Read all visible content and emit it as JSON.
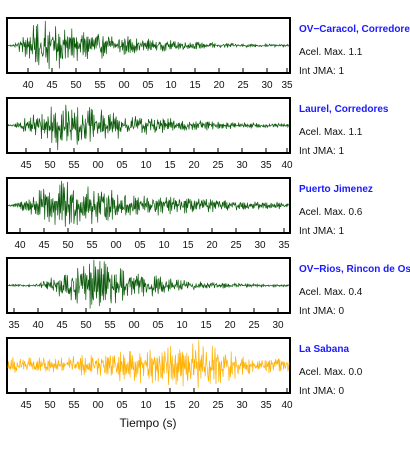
{
  "chart_data": [
    {
      "type": "line",
      "station": "OV−Caracol, Corredore",
      "acel_label": "Acel. Max. 1.1",
      "jma_label": "Int JMA: 1",
      "trace_color": "#0a5a0a",
      "envelope": {
        "start": 0.02,
        "peak_at": 0.12,
        "peak": 0.95,
        "decay": 0.28
      },
      "ticks": [
        "40",
        "45",
        "50",
        "55",
        "00",
        "05",
        "10",
        "15",
        "20",
        "25",
        "30",
        "35"
      ]
    },
    {
      "type": "line",
      "station": "Laurel, Corredores",
      "acel_label": "Acel. Max. 1.1",
      "jma_label": "Int JMA: 1",
      "trace_color": "#0a5a0a",
      "envelope": {
        "start": 0.02,
        "peak_at": 0.18,
        "peak": 0.9,
        "decay": 0.32
      },
      "ticks": [
        "45",
        "50",
        "55",
        "00",
        "05",
        "10",
        "15",
        "20",
        "25",
        "30",
        "35",
        "40"
      ]
    },
    {
      "type": "line",
      "station": "Puerto Jimenez",
      "acel_label": "Acel. Max. 0.6",
      "jma_label": "Int JMA: 1",
      "trace_color": "#0a5a0a",
      "envelope": {
        "start": 0.02,
        "peak_at": 0.18,
        "peak": 0.85,
        "decay": 0.4
      },
      "ticks": [
        "40",
        "45",
        "50",
        "55",
        "00",
        "05",
        "10",
        "15",
        "20",
        "25",
        "30",
        "35"
      ]
    },
    {
      "type": "line",
      "station": "OV−Rios, Rincon de Os",
      "acel_label": "Acel. Max. 0.4",
      "jma_label": "Int JMA: 0",
      "trace_color": "#0a5a0a",
      "envelope": {
        "start": 0.1,
        "peak_at": 0.32,
        "peak": 0.95,
        "decay": 0.2
      },
      "ticks": [
        "35",
        "40",
        "45",
        "50",
        "55",
        "00",
        "05",
        "10",
        "15",
        "20",
        "25",
        "30"
      ]
    },
    {
      "type": "line",
      "station": "La Sabana",
      "acel_label": "Acel. Max. 0.0",
      "jma_label": "Int JMA: 0",
      "trace_color": "#ffb000",
      "envelope": {
        "start": 0.0,
        "peak_at": 0.73,
        "peak": 0.95,
        "decay": 0.12,
        "background": 0.28
      },
      "ticks": [
        "45",
        "50",
        "55",
        "00",
        "05",
        "10",
        "15",
        "20",
        "25",
        "30",
        "35",
        "40"
      ]
    }
  ],
  "xlabel": "Tiempo (s)"
}
